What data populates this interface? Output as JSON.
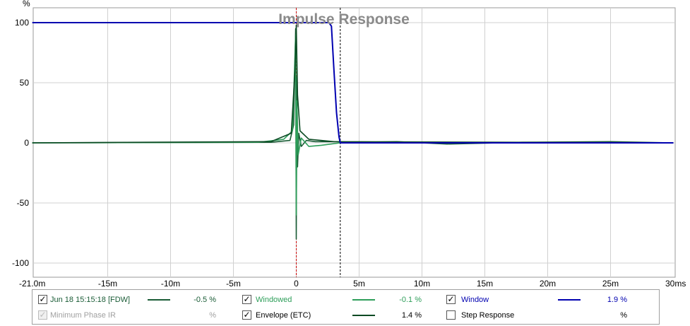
{
  "chart_data": {
    "type": "line",
    "title": "Impulse Response",
    "ylabel": "%",
    "xlabel": "",
    "xlim": [
      -21,
      30
    ],
    "ylim": [
      -105,
      110
    ],
    "x_ticks": [
      {
        "value": -21,
        "label": "-21.0m"
      },
      {
        "value": -15,
        "label": "-15m"
      },
      {
        "value": -10,
        "label": "-10m"
      },
      {
        "value": -5,
        "label": "-5m"
      },
      {
        "value": 0,
        "label": "0"
      },
      {
        "value": 5,
        "label": "5m"
      },
      {
        "value": 10,
        "label": "10m"
      },
      {
        "value": 15,
        "label": "15m"
      },
      {
        "value": 20,
        "label": "20m"
      },
      {
        "value": 25,
        "label": "25m"
      },
      {
        "value": 30,
        "label": "30ms"
      }
    ],
    "y_ticks": [
      {
        "value": 100,
        "label": "100"
      },
      {
        "value": 50,
        "label": "50"
      },
      {
        "value": 0,
        "label": "0"
      },
      {
        "value": -50,
        "label": "-50"
      },
      {
        "value": -100,
        "label": "-100"
      }
    ],
    "grid": true,
    "markers": [
      {
        "x": 0,
        "style": "dashed",
        "color": "#cc0000"
      },
      {
        "x": 3.5,
        "style": "dashed",
        "color": "#000000"
      }
    ],
    "series": [
      {
        "name": "Window",
        "color": "#0000b0",
        "x": [
          -21,
          2.6,
          2.8,
          3.0,
          3.2,
          3.4,
          3.5,
          30
        ],
        "y": [
          100,
          100,
          97,
          60,
          25,
          5,
          0,
          0
        ]
      },
      {
        "name": "Jun 18 15:15:18 [FDW]",
        "color": "#1a5c36",
        "x": [
          -21,
          -2,
          -0.5,
          -0.2,
          -0.05,
          0,
          0.05,
          0.1,
          0.2,
          0.4,
          0.8,
          1.5,
          3,
          5,
          8,
          12,
          18,
          25,
          30
        ],
        "y": [
          0,
          0.5,
          2,
          15,
          95,
          -80,
          55,
          -20,
          8,
          -3,
          2,
          1,
          1,
          0.5,
          1,
          -1,
          0.5,
          1,
          0
        ]
      },
      {
        "name": "Windowed",
        "color": "#2e9e5a",
        "x": [
          -21,
          -3,
          -1,
          -0.3,
          -0.05,
          0,
          0.05,
          0.15,
          0.4,
          1,
          2,
          3.5,
          30
        ],
        "y": [
          0,
          0.5,
          3,
          10,
          90,
          -60,
          35,
          -10,
          4,
          -3,
          -2,
          0,
          0
        ]
      },
      {
        "name": "Envelope (ETC)",
        "color": "#0b4a23",
        "x": [
          -21,
          -2,
          -0.4,
          -0.1,
          0,
          0.1,
          0.3,
          1,
          3,
          30
        ],
        "y": [
          0,
          1,
          8,
          60,
          98,
          40,
          10,
          3,
          1,
          0
        ]
      }
    ]
  },
  "legend": [
    {
      "label": "Jun 18 15:15:18 [FDW]",
      "value": "-0.5 %",
      "checked": true,
      "enabled": true,
      "color": "#1a5c36",
      "text_color": "#1a5c36"
    },
    {
      "label": "Windowed",
      "value": "-0.1 %",
      "checked": true,
      "enabled": true,
      "color": "#2e9e5a",
      "text_color": "#2e9e5a"
    },
    {
      "label": "Window",
      "value": "1.9 %",
      "checked": true,
      "enabled": true,
      "color": "#0000b0",
      "text_color": "#0000b0"
    },
    {
      "label": "Minimum Phase IR",
      "value": "%",
      "checked": true,
      "enabled": false,
      "color": "",
      "text_color": "#a0a0a0"
    },
    {
      "label": "Envelope (ETC)",
      "value": "1.4 %",
      "checked": true,
      "enabled": true,
      "color": "#0b4a23",
      "text_color": "#000000"
    },
    {
      "label": "Step Response",
      "value": "%",
      "checked": false,
      "enabled": true,
      "color": "",
      "text_color": "#000000"
    }
  ]
}
